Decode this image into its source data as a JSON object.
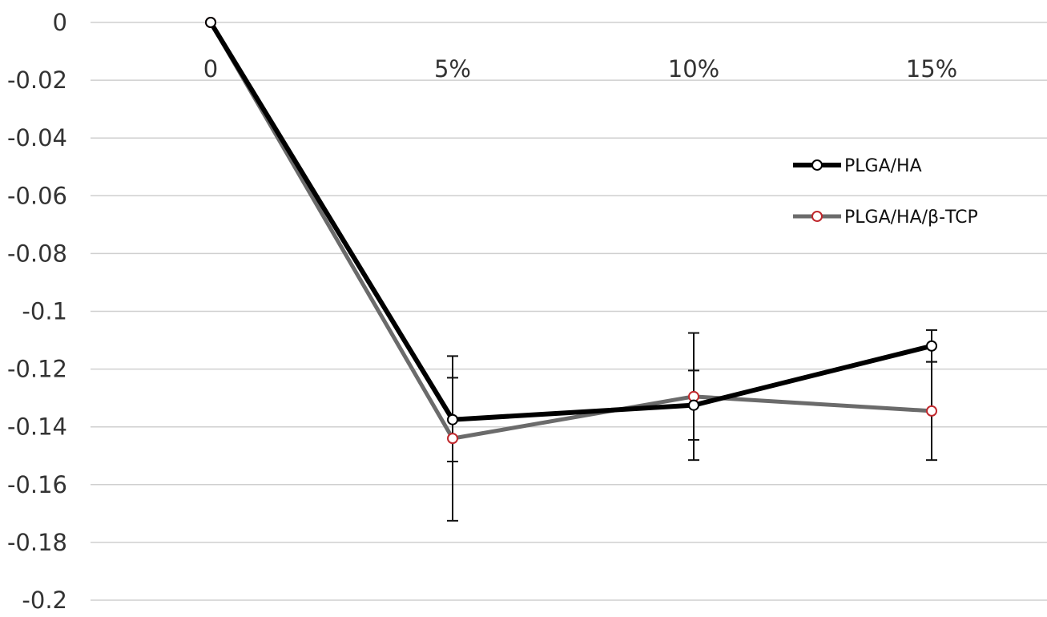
{
  "chart_data": {
    "type": "line",
    "title": "",
    "xlabel": "",
    "ylabel": "",
    "categories": [
      "0",
      "5%",
      "10%",
      "15%"
    ],
    "ylim": [
      -0.2,
      0
    ],
    "yticks": [
      0,
      -0.02,
      -0.04,
      -0.06,
      -0.08,
      -0.1,
      -0.12,
      -0.14,
      -0.16,
      -0.18,
      -0.2
    ],
    "ytick_labels": [
      "0",
      "-0.02",
      "-0.04",
      "-0.06",
      "-0.08",
      "-0.1",
      "-0.12",
      "-0.14",
      "-0.16",
      "-0.18",
      "-0.2"
    ],
    "grid": true,
    "legend_position": "right",
    "series": [
      {
        "name": "PLGA/HA",
        "values": [
          0,
          -0.1375,
          -0.1325,
          -0.112
        ],
        "errors": [
          0,
          0.0145,
          0.012,
          0.0055
        ],
        "line_color": "#000000",
        "marker_fill": "#ffffff",
        "marker_stroke": "#000000"
      },
      {
        "name": "PLGA/HA/β-TCP",
        "values": [
          0,
          -0.144,
          -0.1295,
          -0.1345
        ],
        "errors": [
          0,
          0.0285,
          0.022,
          0.017
        ],
        "line_color": "#6b6b6b",
        "marker_fill": "#ffffff",
        "marker_stroke": "#c0282d"
      }
    ]
  }
}
